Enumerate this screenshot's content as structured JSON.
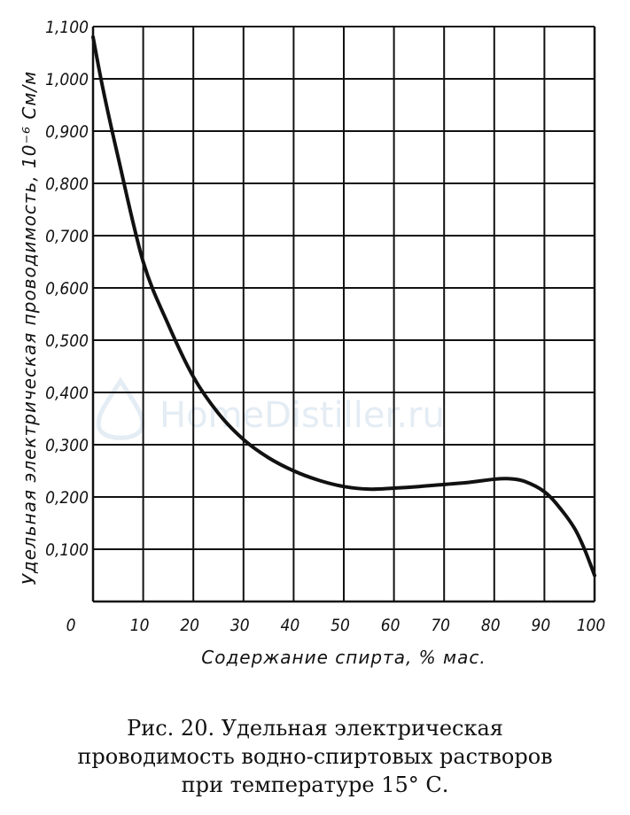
{
  "chart_data": {
    "type": "line",
    "title": "",
    "xlabel": "Содержание спирта, % мас.",
    "ylabel": "Удельная электрическая проводимость, 10⁻⁶ См/м",
    "xlim": [
      0,
      100
    ],
    "ylim": [
      0,
      1.1
    ],
    "grid": true,
    "x_ticks": [
      "0",
      "10",
      "20",
      "30",
      "40",
      "50",
      "60",
      "70",
      "80",
      "90",
      "100"
    ],
    "y_ticks": [
      "0,100",
      "0,200",
      "0,300",
      "0,400",
      "0,500",
      "0,600",
      "0,700",
      "0,800",
      "0,900",
      "1,000",
      "1,100"
    ],
    "series": [
      {
        "name": "проводимость",
        "x": [
          0,
          2,
          5,
          10,
          15,
          20,
          25,
          30,
          35,
          40,
          45,
          50,
          55,
          60,
          65,
          70,
          75,
          80,
          83,
          86,
          90,
          93,
          96,
          98,
          100
        ],
        "y": [
          1.08,
          0.98,
          0.85,
          0.65,
          0.53,
          0.43,
          0.36,
          0.31,
          0.275,
          0.25,
          0.232,
          0.22,
          0.215,
          0.217,
          0.22,
          0.224,
          0.228,
          0.234,
          0.235,
          0.23,
          0.21,
          0.18,
          0.14,
          0.1,
          0.05
        ]
      }
    ]
  },
  "caption": {
    "line1": "Рис. 20. Удельная электрическая",
    "line2": "проводимость водно-спиртовых растворов",
    "line3": "при температуре 15° С."
  },
  "watermark": "HomeDistiller.ru"
}
